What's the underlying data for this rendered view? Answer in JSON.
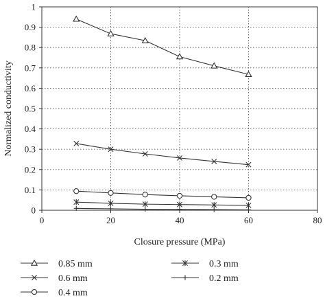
{
  "chart_data": {
    "type": "line",
    "xlabel": "Closure pressure (MPa)",
    "ylabel": "Normalized conductivity",
    "xlim": [
      0,
      80
    ],
    "ylim": [
      0,
      1
    ],
    "xticks": [
      0,
      20,
      40,
      60,
      80
    ],
    "yticks": [
      0,
      0.1,
      0.2,
      0.3,
      0.4,
      0.5,
      0.6,
      0.7,
      0.8,
      0.9,
      1
    ],
    "xtick_labels": [
      "0",
      "20",
      "40",
      "60",
      "80"
    ],
    "ytick_labels": [
      "0",
      "0.1",
      "0.2",
      "0.3",
      "0.4",
      "0.5",
      "0.6",
      "0.7",
      "0.8",
      "0.9",
      "1"
    ],
    "grid": "dotted vertical at 20, 40, 60; dotted horizontal at 0.1 to 0.9",
    "legend_position": "below",
    "x": [
      10,
      20,
      30,
      40,
      50,
      60
    ],
    "series": [
      {
        "name": "0.85 mm",
        "marker": "triangle",
        "values": [
          0.94,
          0.868,
          0.834,
          0.755,
          0.71,
          0.668
        ]
      },
      {
        "name": "0.6 mm",
        "marker": "x",
        "values": [
          0.328,
          0.3,
          0.277,
          0.257,
          0.24,
          0.224
        ]
      },
      {
        "name": "0.4 mm",
        "marker": "circle",
        "values": [
          0.094,
          0.085,
          0.077,
          0.071,
          0.066,
          0.061
        ]
      },
      {
        "name": "0.3 mm",
        "marker": "asterisk",
        "values": [
          0.04,
          0.034,
          0.03,
          0.028,
          0.026,
          0.024
        ]
      },
      {
        "name": "0.2 mm",
        "marker": "plus",
        "values": [
          0.009,
          0.007,
          0.005,
          0.004,
          0.003,
          0.002
        ]
      }
    ],
    "colors": {
      "line": "#333333",
      "grid": "#555555",
      "background": "#ffffff"
    }
  }
}
